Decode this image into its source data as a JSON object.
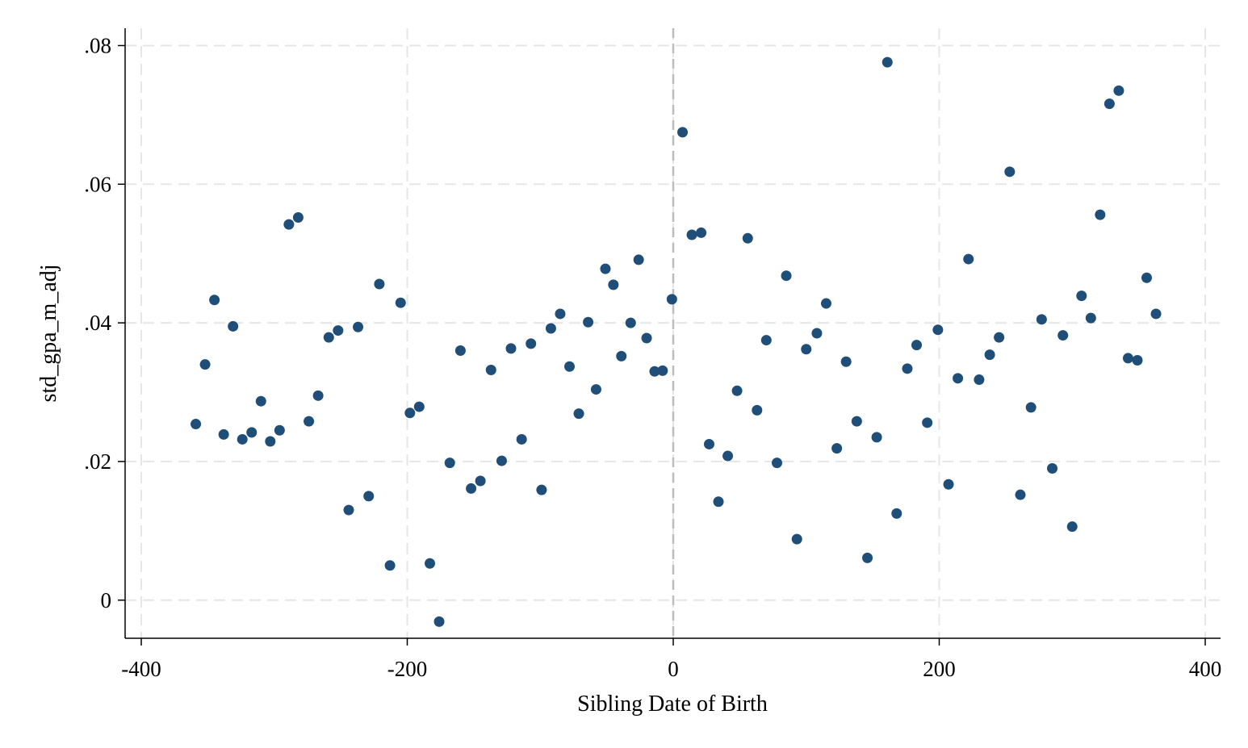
{
  "chart_data": {
    "type": "scatter",
    "xlabel": "Sibling Date of Birth",
    "ylabel": "std_gpa_m_adj",
    "xlim": [
      -400,
      400
    ],
    "ylim": [
      -0.0055,
      0.0825
    ],
    "x_ticks": [
      -400,
      -200,
      0,
      200,
      400
    ],
    "x_tick_labels": [
      "-400",
      "-200",
      "0",
      "200",
      "400"
    ],
    "y_ticks": [
      0,
      0.02,
      0.04,
      0.06,
      0.08
    ],
    "y_tick_labels": [
      "0",
      ".02",
      ".04",
      ".06",
      ".08"
    ],
    "grid": true,
    "reference_line_x": 0,
    "marker_color": "#1f4e79",
    "grid_color": "#e6e6e6",
    "refline_color": "#bdbdbd",
    "points": [
      [
        -359,
        0.0254
      ],
      [
        -352,
        0.034
      ],
      [
        -345,
        0.0433
      ],
      [
        -338,
        0.0239
      ],
      [
        -331,
        0.0395
      ],
      [
        -324,
        0.0232
      ],
      [
        -317,
        0.0242
      ],
      [
        -310,
        0.0287
      ],
      [
        -303,
        0.0229
      ],
      [
        -296,
        0.0245
      ],
      [
        -289,
        0.0542
      ],
      [
        -282,
        0.0552
      ],
      [
        -274,
        0.0258
      ],
      [
        -267,
        0.0295
      ],
      [
        -259,
        0.0379
      ],
      [
        -252,
        0.0389
      ],
      [
        -244,
        0.013
      ],
      [
        -237,
        0.0394
      ],
      [
        -229,
        0.015
      ],
      [
        -221,
        0.0456
      ],
      [
        -213,
        0.005
      ],
      [
        -205,
        0.0429
      ],
      [
        -198,
        0.027
      ],
      [
        -191,
        0.0279
      ],
      [
        -183,
        0.0053
      ],
      [
        -176,
        -0.0031
      ],
      [
        -168,
        0.0198
      ],
      [
        -160,
        0.036
      ],
      [
        -152,
        0.0161
      ],
      [
        -145,
        0.0172
      ],
      [
        -137,
        0.0332
      ],
      [
        -129,
        0.0201
      ],
      [
        -122,
        0.0363
      ],
      [
        -114,
        0.0232
      ],
      [
        -107,
        0.037
      ],
      [
        -99,
        0.0159
      ],
      [
        -92,
        0.0392
      ],
      [
        -85,
        0.0413
      ],
      [
        -78,
        0.0337
      ],
      [
        -71,
        0.0269
      ],
      [
        -64,
        0.0401
      ],
      [
        -58,
        0.0304
      ],
      [
        -51,
        0.0478
      ],
      [
        -45,
        0.0455
      ],
      [
        -39,
        0.0352
      ],
      [
        -32,
        0.04
      ],
      [
        -26,
        0.0491
      ],
      [
        -20,
        0.0378
      ],
      [
        -14,
        0.033
      ],
      [
        -8,
        0.0331
      ],
      [
        -1,
        0.0434
      ],
      [
        7,
        0.0675
      ],
      [
        14,
        0.0527
      ],
      [
        21,
        0.053
      ],
      [
        27,
        0.0225
      ],
      [
        34,
        0.0142
      ],
      [
        41,
        0.0208
      ],
      [
        48,
        0.0302
      ],
      [
        56,
        0.0522
      ],
      [
        63,
        0.0274
      ],
      [
        70,
        0.0375
      ],
      [
        78,
        0.0198
      ],
      [
        85,
        0.0468
      ],
      [
        93,
        0.0088
      ],
      [
        100,
        0.0362
      ],
      [
        108,
        0.0385
      ],
      [
        115,
        0.0428
      ],
      [
        123,
        0.0219
      ],
      [
        130,
        0.0344
      ],
      [
        138,
        0.0258
      ],
      [
        146,
        0.0061
      ],
      [
        153,
        0.0235
      ],
      [
        161,
        0.0776
      ],
      [
        168,
        0.0125
      ],
      [
        176,
        0.0334
      ],
      [
        183,
        0.0368
      ],
      [
        191,
        0.0256
      ],
      [
        199,
        0.039
      ],
      [
        207,
        0.0167
      ],
      [
        214,
        0.032
      ],
      [
        222,
        0.0492
      ],
      [
        230,
        0.0318
      ],
      [
        238,
        0.0354
      ],
      [
        245,
        0.0379
      ],
      [
        253,
        0.0618
      ],
      [
        261,
        0.0152
      ],
      [
        269,
        0.0278
      ],
      [
        277,
        0.0405
      ],
      [
        285,
        0.019
      ],
      [
        293,
        0.0382
      ],
      [
        300,
        0.0106
      ],
      [
        307,
        0.0439
      ],
      [
        314,
        0.0407
      ],
      [
        321,
        0.0556
      ],
      [
        328,
        0.0716
      ],
      [
        335,
        0.0735
      ],
      [
        342,
        0.0349
      ],
      [
        349,
        0.0346
      ],
      [
        356,
        0.0465
      ],
      [
        363,
        0.0413
      ]
    ]
  }
}
